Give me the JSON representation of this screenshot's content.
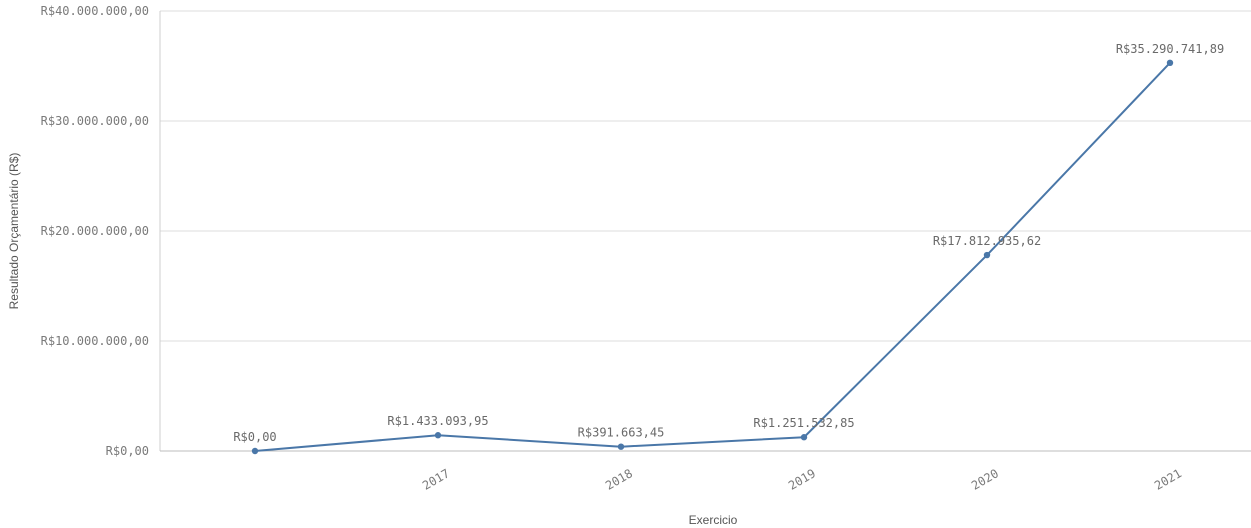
{
  "chart_data": {
    "type": "line",
    "title": "",
    "xlabel": "Exercicio",
    "ylabel": "Resultado Orçamentário (R$)",
    "categories": [
      "",
      "2017",
      "2018",
      "2019",
      "2020",
      "2021"
    ],
    "series": [
      {
        "values": [
          0,
          1433093.95,
          391663.45,
          1251532.85,
          17812935.62,
          35290741.89
        ],
        "labels": [
          "R$0,00",
          "R$1.433.093,95",
          "R$391.663,45",
          "R$1.251.532,85",
          "R$17.812.935,62",
          "R$35.290.741,89"
        ],
        "color": "#4a77a8"
      }
    ],
    "ylim": [
      0,
      40000000
    ],
    "yticks": [
      0,
      10000000,
      20000000,
      30000000,
      40000000
    ],
    "ytick_labels": [
      "R$0,00",
      "R$10.000.000,00",
      "R$20.000.000,00",
      "R$30.000.000,00",
      "R$40.000.000,00"
    ],
    "grid": true,
    "legend": "none"
  }
}
